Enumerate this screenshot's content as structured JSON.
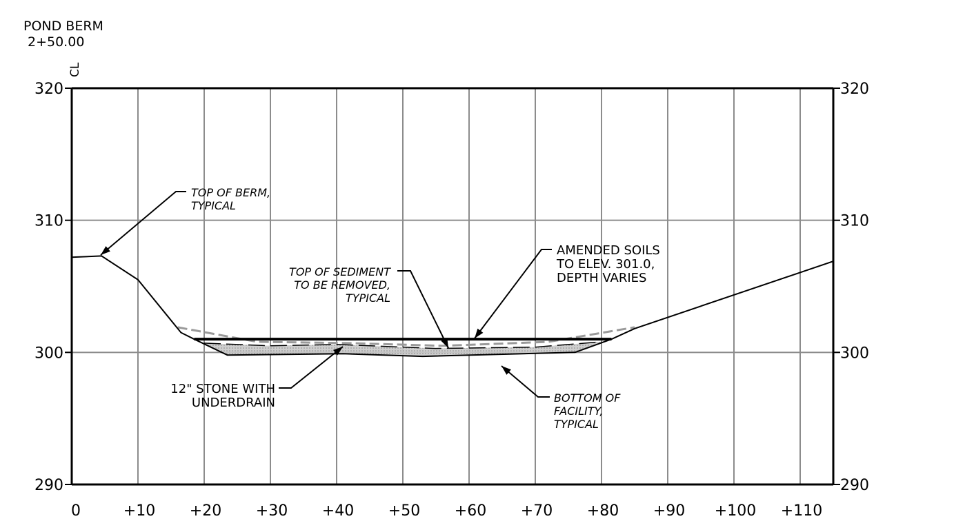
{
  "header": {
    "title": "POND BERM",
    "station": "2+50.00",
    "centerline_label": "CL"
  },
  "chart_data": {
    "type": "profile",
    "x_ticks": [
      "0",
      "+10",
      "+20",
      "+30",
      "+40",
      "+50",
      "+60",
      "+70",
      "+80",
      "+90",
      "+100",
      "+110"
    ],
    "y_ticks": [
      "290",
      "300",
      "310",
      "320"
    ],
    "xlim": [
      0,
      115
    ],
    "ylim": [
      290,
      320
    ],
    "grid": true,
    "x_grid_step": 10,
    "existing_ground": [
      {
        "x": 0,
        "y": 307.2
      },
      {
        "x": 4.5,
        "y": 307.3
      },
      {
        "x": 10,
        "y": 305.5
      },
      {
        "x": 16.5,
        "y": 301.5
      },
      {
        "x": 18.5,
        "y": 301.0
      },
      {
        "x": 81.5,
        "y": 301.0
      },
      {
        "x": 85,
        "y": 301.8
      },
      {
        "x": 115,
        "y": 306.9
      }
    ],
    "amended_soil_top": {
      "x1": 18.5,
      "x2": 81.5,
      "y": 301.0
    },
    "facility_bottom": [
      {
        "x": 18.5,
        "y": 301.0
      },
      {
        "x": 23.5,
        "y": 299.8
      },
      {
        "x": 41,
        "y": 299.9
      },
      {
        "x": 53,
        "y": 299.7
      },
      {
        "x": 76,
        "y": 300.0
      },
      {
        "x": 81.5,
        "y": 301.0
      }
    ],
    "stone_top": [
      {
        "x": 20,
        "y": 300.7
      },
      {
        "x": 30,
        "y": 300.5
      },
      {
        "x": 40,
        "y": 300.6
      },
      {
        "x": 55,
        "y": 300.3
      },
      {
        "x": 70,
        "y": 300.4
      },
      {
        "x": 80,
        "y": 300.8
      }
    ],
    "sediment_top": [
      {
        "x": 16,
        "y": 301.9
      },
      {
        "x": 28,
        "y": 300.8
      },
      {
        "x": 42,
        "y": 300.7
      },
      {
        "x": 56,
        "y": 300.5
      },
      {
        "x": 72,
        "y": 300.8
      },
      {
        "x": 85,
        "y": 301.9
      }
    ],
    "annotations": [
      {
        "id": "berm",
        "lines": [
          "TOP OF BERM,",
          "TYPICAL"
        ],
        "italic": true
      },
      {
        "id": "sediment",
        "lines": [
          "TOP OF SEDIMENT",
          "TO BE REMOVED,",
          "TYPICAL"
        ],
        "italic": true
      },
      {
        "id": "amended",
        "lines": [
          "AMENDED SOILS",
          "TO ELEV. 301.0,",
          "DEPTH VARIES"
        ],
        "italic": false
      },
      {
        "id": "stone",
        "lines": [
          "12\" STONE WITH",
          "UNDERDRAIN"
        ],
        "italic": false
      },
      {
        "id": "bottom",
        "lines": [
          "BOTTOM OF",
          "FACILITY,",
          "TYPICAL"
        ],
        "italic": true
      }
    ]
  }
}
